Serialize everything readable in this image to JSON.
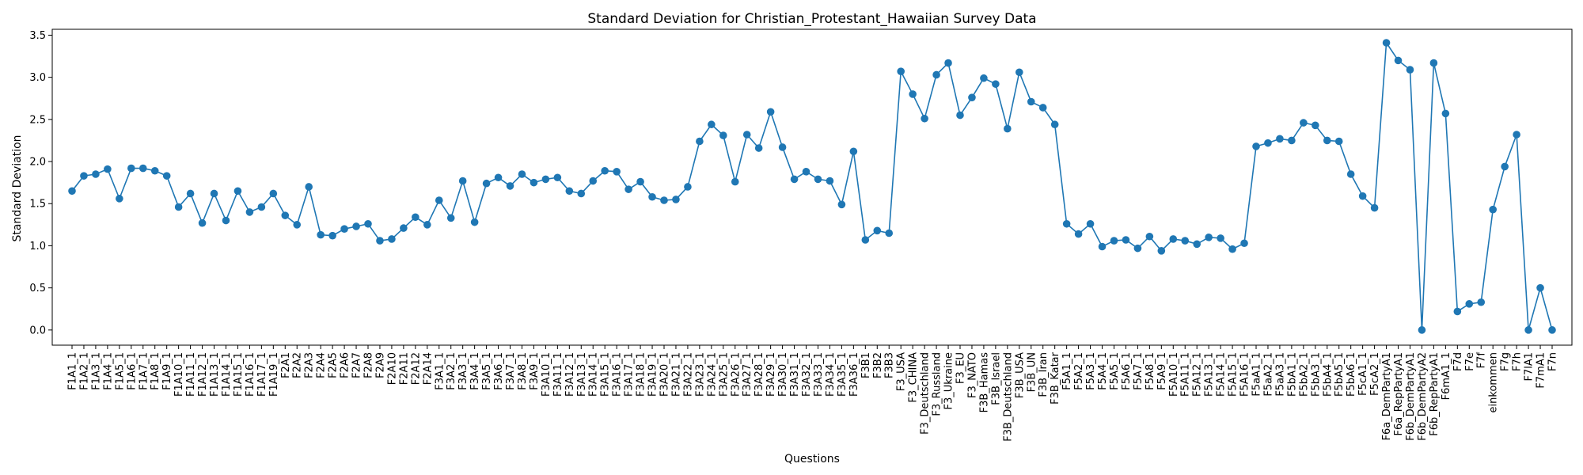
{
  "chart_data": {
    "type": "line",
    "title": "Standard Deviation for Christian_Protestant_Hawaiian Survey Data",
    "xlabel": "Questions",
    "ylabel": "Standard Deviation",
    "ylim": [
      -0.18,
      3.57
    ],
    "yticks": [
      0.0,
      0.5,
      1.0,
      1.5,
      2.0,
      2.5,
      3.0,
      3.5
    ],
    "ytick_labels": [
      "0.0",
      "0.5",
      "1.0",
      "1.5",
      "2.0",
      "2.5",
      "3.0",
      "3.5"
    ],
    "grid": false,
    "markers": true,
    "color": "#1f77b4",
    "categories": [
      "F1A1_1",
      "F1A2_1",
      "F1A3_1",
      "F1A4_1",
      "F1A5_1",
      "F1A6_1",
      "F1A7_1",
      "F1A8_1",
      "F1A9_1",
      "F1A10_1",
      "F1A11_1",
      "F1A12_1",
      "F1A13_1",
      "F1A14_1",
      "F1A15_1",
      "F1A16_1",
      "F1A17_1",
      "F1A19_1",
      "F2A1",
      "F2A2",
      "F2A3",
      "F2A4",
      "F2A5",
      "F2A6",
      "F2A7",
      "F2A8",
      "F2A9",
      "F2A10",
      "F2A11",
      "F2A12",
      "F2A14",
      "F3A1_1",
      "F3A2_1",
      "F3A3_1",
      "F3A4_1",
      "F3A5_1",
      "F3A6_1",
      "F3A7_1",
      "F3A8_1",
      "F3A9_1",
      "F3A10_1",
      "F3A11_1",
      "F3A12_1",
      "F3A13_1",
      "F3A14_1",
      "F3A15_1",
      "F3A16_1",
      "F3A17_1",
      "F3A18_1",
      "F3A19_1",
      "F3A20_1",
      "F3A21_1",
      "F3A22_1",
      "F3A23_1",
      "F3A24_1",
      "F3A25_1",
      "F3A26_1",
      "F3A27_1",
      "F3A28_1",
      "F3A29_1",
      "F3A30_1",
      "F3A31_1",
      "F3A32_1",
      "F3A33_1",
      "F3A34_1",
      "F3A35_1",
      "F3A36_1",
      "F3B1",
      "F3B2",
      "F3B3",
      "F3_USA",
      "F3_CHINA",
      "F3_Deutschland",
      "F3_Russland",
      "F3_Ukraine",
      "F3_EU",
      "F3_NATO",
      "F3B_Hamas",
      "F3B_Israel",
      "F3B_Deutschland",
      "F3B_USA",
      "F3B_UN",
      "F3B_Iran",
      "F3B_Katar",
      "F5A1_1",
      "F5A2_1",
      "F5A3_1",
      "F5A4_1",
      "F5A5_1",
      "F5A6_1",
      "F5A7_1",
      "F5A8_1",
      "F5A9_1",
      "F5A10_1",
      "F5A11_1",
      "F5A12_1",
      "F5A13_1",
      "F5A14_1",
      "F5A15_1",
      "F5A16_1",
      "F5aA1_1",
      "F5aA2_1",
      "F5aA3_1",
      "F5bA1_1",
      "F5bA2_1",
      "F5bA3_1",
      "F5bA4_1",
      "F5bA5_1",
      "F5bA6_1",
      "F5cA1_1",
      "F5cA2_1",
      "F6a_DemPartyA1",
      "F6a_RepPartyA1",
      "F6b_DemPartyA1",
      "F6b_DemPartyA2",
      "F6b_RepPartyA1",
      "F6mA1_1",
      "F7d",
      "F7e",
      "F7f",
      "einkommen",
      "F7g",
      "F7h",
      "F7lA1",
      "F7mA1",
      "F7n"
    ],
    "values": [
      1.65,
      1.83,
      1.85,
      1.91,
      1.56,
      1.92,
      1.92,
      1.89,
      1.83,
      1.46,
      1.62,
      1.27,
      1.62,
      1.3,
      1.65,
      1.4,
      1.46,
      1.62,
      1.36,
      1.25,
      1.7,
      1.13,
      1.12,
      1.2,
      1.23,
      1.26,
      1.06,
      1.08,
      1.21,
      1.34,
      1.25,
      1.54,
      1.33,
      1.77,
      1.28,
      1.74,
      1.81,
      1.71,
      1.85,
      1.75,
      1.79,
      1.81,
      1.65,
      1.62,
      1.77,
      1.89,
      1.88,
      1.67,
      1.76,
      1.58,
      1.54,
      1.55,
      1.7,
      2.24,
      2.44,
      2.31,
      1.76,
      2.32,
      2.16,
      2.59,
      2.17,
      1.79,
      1.88,
      1.79,
      1.77,
      1.49,
      2.12,
      1.07,
      1.18,
      1.15,
      3.07,
      2.8,
      2.51,
      3.03,
      3.17,
      2.55,
      2.76,
      2.99,
      2.92,
      2.39,
      3.06,
      2.71,
      2.64,
      2.44,
      1.26,
      1.14,
      1.26,
      0.99,
      1.06,
      1.07,
      0.97,
      1.11,
      0.94,
      1.08,
      1.06,
      1.02,
      1.1,
      1.09,
      0.96,
      1.03,
      2.18,
      2.22,
      2.27,
      2.25,
      2.46,
      2.43,
      2.25,
      2.24,
      1.85,
      1.59,
      1.45,
      3.41,
      3.2,
      3.09,
      0.0,
      3.17,
      2.57,
      0.22,
      0.31,
      0.33,
      1.43,
      1.94,
      2.32,
      0.0,
      0.5,
      0.0
    ]
  }
}
